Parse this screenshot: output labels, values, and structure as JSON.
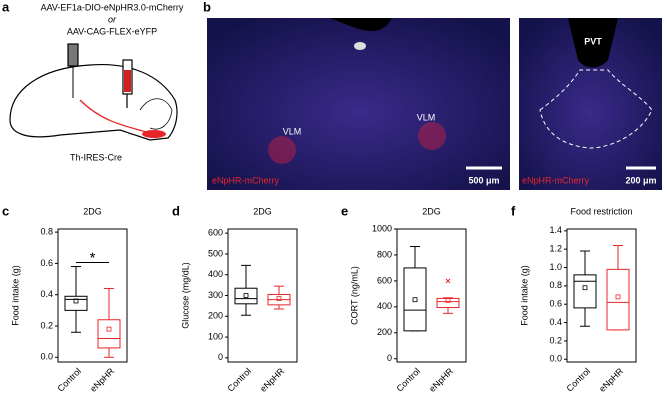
{
  "panels": {
    "a": {
      "letter": "a",
      "construct_1": "AAV-EF1a-DIO-eNpHR3.0-mCherry",
      "or": "or",
      "construct_2": "AAV-CAG-FLEX-eYFP",
      "mouse": "Th-IRES-Cre"
    },
    "b": {
      "letter": "b",
      "vlm_left": "VLM",
      "vlm_right": "VLM",
      "stain_left": "eNpHR-mCherry",
      "scale_left": "500 μm",
      "pvt": "PVT",
      "stain_right": "eNpHR-mCherry",
      "scale_right": "200 μm"
    }
  },
  "chart_data": [
    {
      "type": "box",
      "panel": "c",
      "title": "2DG",
      "y_label": "Food intake (g)",
      "categories": [
        "Control",
        "eNpHR"
      ],
      "ylim": [
        -0.03,
        0.82
      ],
      "yticks": [
        {
          "value": 0,
          "label": "0.0"
        },
        {
          "value": 0.2,
          "label": "0.2"
        },
        {
          "value": 0.4,
          "label": "0.4"
        },
        {
          "value": 0.6,
          "label": "0.6"
        },
        {
          "value": 0.8,
          "label": "0.8"
        }
      ],
      "significance": "*",
      "boxes": [
        {
          "color": "#000000",
          "min": 0.16,
          "q1": 0.3,
          "median": 0.37,
          "q3": 0.39,
          "max": 0.58,
          "mean": 0.36,
          "outliers": []
        },
        {
          "color": "#e8262a",
          "min": 0.0,
          "q1": 0.06,
          "median": 0.12,
          "q3": 0.24,
          "max": 0.44,
          "mean": 0.18,
          "outliers": []
        }
      ]
    },
    {
      "type": "box",
      "panel": "d",
      "title": "2DG",
      "y_label": "Glucose (mg/dL)",
      "categories": [
        "Control",
        "eNpHR"
      ],
      "ylim": [
        -20,
        620
      ],
      "yticks": [
        0,
        100,
        200,
        300,
        400,
        500,
        600
      ],
      "boxes": [
        {
          "color": "#000000",
          "min": 205,
          "q1": 260,
          "median": 285,
          "q3": 335,
          "max": 445,
          "mean": 300,
          "outliers": []
        },
        {
          "color": "#e8262a",
          "min": 235,
          "q1": 255,
          "median": 280,
          "q3": 305,
          "max": 345,
          "mean": 285,
          "outliers": []
        }
      ]
    },
    {
      "type": "box",
      "panel": "e",
      "title": "2DG",
      "y_label": "CORT (ng/mL)",
      "categories": [
        "Control",
        "eNpHR"
      ],
      "ylim": [
        -25,
        1000
      ],
      "yticks": [
        0,
        200,
        400,
        600,
        800,
        1000
      ],
      "boxes": [
        {
          "color": "#000000",
          "min": 215,
          "q1": 215,
          "median": 375,
          "q3": 700,
          "max": 865,
          "mean": 455,
          "outliers": []
        },
        {
          "color": "#e8262a",
          "min": 350,
          "q1": 395,
          "median": 440,
          "q3": 465,
          "max": 470,
          "mean": 450,
          "outliers": [
            600
          ]
        }
      ]
    },
    {
      "type": "box",
      "panel": "f",
      "title": "Food restriction",
      "y_label": "Food intake (g)",
      "categories": [
        "Control",
        "eNpHR"
      ],
      "ylim": [
        -0.03,
        1.42
      ],
      "yticks": [
        {
          "value": 0,
          "label": "0.0"
        },
        {
          "value": 0.2,
          "label": "0.2"
        },
        {
          "value": 0.4,
          "label": "0.4"
        },
        {
          "value": 0.6,
          "label": "0.6"
        },
        {
          "value": 0.8,
          "label": "0.8"
        },
        {
          "value": 1.0,
          "label": "1.0"
        },
        {
          "value": 1.2,
          "label": "1.2"
        },
        {
          "value": 1.4,
          "label": "1.4"
        }
      ],
      "boxes": [
        {
          "color": "#000000",
          "min": 0.36,
          "q1": 0.56,
          "median": 0.85,
          "q3": 0.92,
          "max": 1.18,
          "mean": 0.78,
          "outliers": []
        },
        {
          "color": "#e8262a",
          "min": 0.32,
          "q1": 0.32,
          "median": 0.62,
          "q3": 0.98,
          "max": 1.24,
          "mean": 0.68,
          "outliers": []
        }
      ]
    }
  ]
}
